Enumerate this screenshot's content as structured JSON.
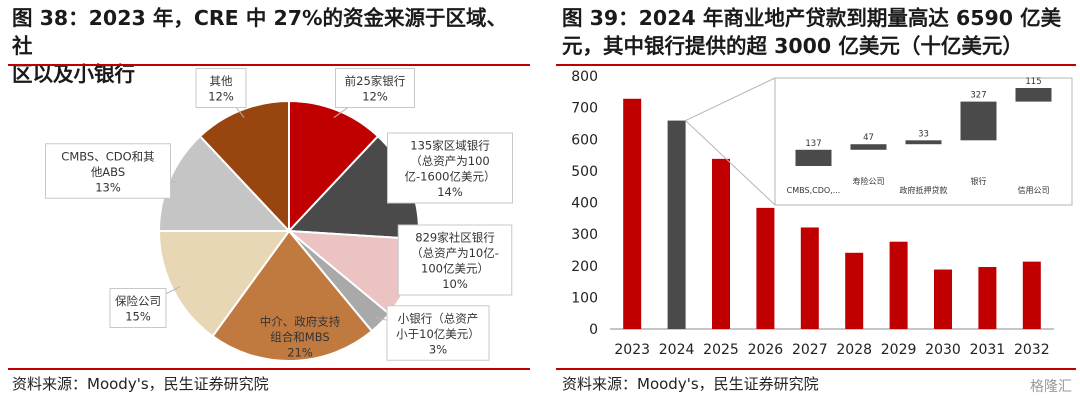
{
  "left": {
    "title": "图 38：2023 年，CRE 中 27%的资金来源于区域、社\n区以及小银行",
    "source": "资料来源：Moody's，民生证券研究院"
  },
  "right": {
    "title": "图 39：2024 年商业地产贷款到期量高达 6590 亿美\n元，其中银行提供的超 3000 亿美元（十亿美元）",
    "source": "资料来源：Moody's，民生证券研究院"
  },
  "watermark": "格隆汇",
  "chart_data": [
    {
      "type": "pie",
      "slices": [
        {
          "label": [
            "前25家银行"
          ],
          "pct": "12%",
          "value": 12,
          "color": "#c00000"
        },
        {
          "label": [
            "135家区域银行",
            "（总资产为100",
            "亿-1600亿美元）"
          ],
          "pct": "14%",
          "value": 14,
          "color": "#4a4a4a"
        },
        {
          "label": [
            "829家社区银行",
            "（总资产为10亿-",
            "100亿美元）"
          ],
          "pct": "10%",
          "value": 10,
          "color": "#ecc3c3"
        },
        {
          "label": [
            "小银行（总资产",
            "小于10亿美元）"
          ],
          "pct": "3%",
          "value": 3,
          "color": "#a9a9a9"
        },
        {
          "label": [
            "中介、政府支持",
            "组合和MBS"
          ],
          "pct": "21%",
          "value": 21,
          "color": "#c07a40"
        },
        {
          "label": [
            "保险公司"
          ],
          "pct": "15%",
          "value": 15,
          "color": "#e8d7b5"
        },
        {
          "label": [
            "CMBS、CDO和其",
            "他ABS"
          ],
          "pct": "13%",
          "value": 13,
          "color": "#c5c5c5"
        },
        {
          "label": [
            "其他"
          ],
          "pct": "12%",
          "value": 12,
          "color": "#984510"
        }
      ]
    },
    {
      "type": "bar",
      "categories": [
        "2023",
        "2024",
        "2025",
        "2026",
        "2027",
        "2028",
        "2029",
        "2030",
        "2031",
        "2032"
      ],
      "values": [
        728,
        659,
        538,
        383,
        321,
        241,
        276,
        188,
        196,
        213
      ],
      "colors": [
        "#c00000",
        "#4a4a4a",
        "#c00000",
        "#c00000",
        "#c00000",
        "#c00000",
        "#c00000",
        "#c00000",
        "#c00000",
        "#c00000"
      ],
      "ylim": [
        0,
        800
      ],
      "yticks": [
        0,
        100,
        200,
        300,
        400,
        500,
        600,
        700,
        800
      ],
      "grid": false
    },
    {
      "type": "bar",
      "subtype": "waterfall",
      "inset_of": "2024",
      "categories": [
        "CMBS,CDO,...",
        "寿险公司",
        "政府抵押贷款",
        "银行",
        "信用公司"
      ],
      "values": [
        137,
        47,
        33,
        327,
        115
      ],
      "colors": [
        "#4a4a4a",
        "#4a4a4a",
        "#4a4a4a",
        "#4a4a4a",
        "#4a4a4a"
      ]
    }
  ]
}
